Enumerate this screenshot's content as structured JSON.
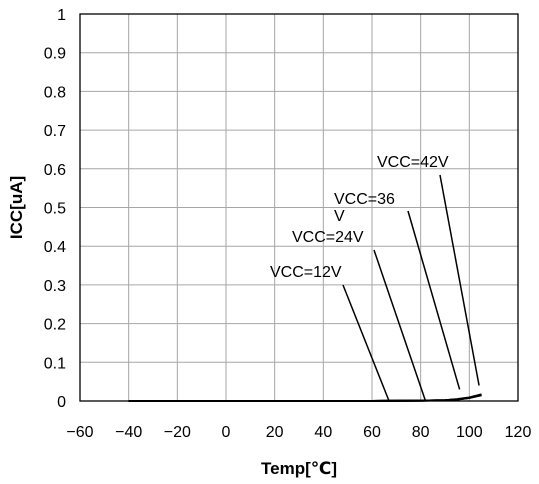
{
  "chart_data": {
    "type": "line",
    "title": "",
    "xlabel": "Temp[℃]",
    "ylabel": "ICC[uA]",
    "xlim": [
      -60,
      120
    ],
    "ylim": [
      0,
      1
    ],
    "xticks": [
      -60,
      -40,
      -20,
      0,
      20,
      40,
      60,
      80,
      100,
      120
    ],
    "yticks": [
      0,
      0.1,
      0.2,
      0.3,
      0.4,
      0.5,
      0.6,
      0.7,
      0.8,
      0.9,
      1
    ],
    "xtick_labels": [
      "−60",
      "−40",
      "−20",
      "0",
      "20",
      "40",
      "60",
      "80",
      "100",
      "120"
    ],
    "ytick_labels": [
      "0",
      "0.1",
      "0.2",
      "0.3",
      "0.4",
      "0.5",
      "0.6",
      "0.7",
      "0.8",
      "0.9",
      "1"
    ],
    "grid": true,
    "legend": "none",
    "series": [
      {
        "name": "VCC=12V",
        "x": [
          -40,
          -20,
          0,
          20,
          40,
          60,
          80,
          90,
          95,
          100,
          105
        ],
        "y": [
          0,
          0,
          0,
          0,
          0,
          0,
          0.001,
          0.002,
          0.004,
          0.008,
          0.015
        ]
      },
      {
        "name": "VCC=24V",
        "x": [
          -40,
          -20,
          0,
          20,
          40,
          60,
          80,
          90,
          95,
          100,
          105
        ],
        "y": [
          0,
          0,
          0,
          0,
          0,
          0,
          0.001,
          0.002,
          0.004,
          0.008,
          0.015
        ]
      },
      {
        "name": "VCC=36V",
        "x": [
          -40,
          -20,
          0,
          20,
          40,
          60,
          80,
          90,
          95,
          100,
          105
        ],
        "y": [
          0,
          0,
          0,
          0,
          0,
          0,
          0.001,
          0.002,
          0.004,
          0.008,
          0.016
        ]
      },
      {
        "name": "VCC=42V",
        "x": [
          -40,
          -20,
          0,
          20,
          40,
          60,
          80,
          90,
          95,
          100,
          105
        ],
        "y": [
          0,
          0,
          0,
          0,
          0,
          0,
          0.001,
          0.002,
          0.005,
          0.009,
          0.017
        ]
      }
    ],
    "annotations": [
      {
        "label_lines": [
          "VCC=12V"
        ],
        "x": 67,
        "y": 0
      },
      {
        "label_lines": [
          "VCC=24V"
        ],
        "x": 82,
        "y": 0
      },
      {
        "label_lines": [
          "VCC=36",
          "V"
        ],
        "x": 96,
        "y": 0.03
      },
      {
        "label_lines": [
          "VCC=42V"
        ],
        "x": 104,
        "y": 0.04
      }
    ],
    "colors": {
      "line": "#000000",
      "grid": "#a6a6a6",
      "axis": "#000000"
    }
  }
}
